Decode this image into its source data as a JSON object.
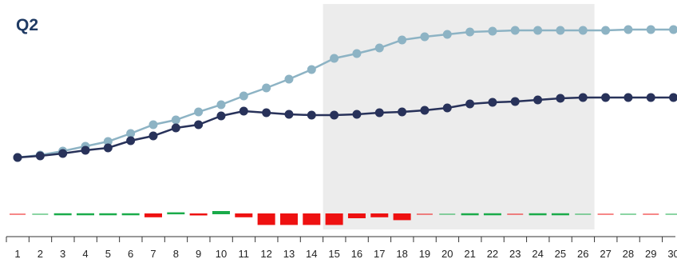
{
  "chart_data": {
    "type": "line",
    "title": "Q2",
    "x": [
      1,
      2,
      3,
      4,
      5,
      6,
      7,
      8,
      9,
      10,
      11,
      12,
      13,
      14,
      15,
      16,
      17,
      18,
      19,
      20,
      21,
      22,
      23,
      24,
      25,
      26,
      27,
      28,
      29,
      30
    ],
    "highlight_range": [
      15,
      27
    ],
    "colors": {
      "light_series": "#8db3c4",
      "dark_series": "#28325a",
      "highlight": "#ececec",
      "positive": "#1aab4a",
      "negative": "#ee1111",
      "axis": "#333333"
    },
    "series": [
      {
        "name": "",
        "color": "#8db3c4",
        "values": [
          197,
          194,
          189,
          183,
          177,
          167,
          156,
          150,
          140,
          131,
          120,
          110,
          99,
          87,
          73,
          67,
          60,
          50,
          46,
          43,
          40,
          39,
          38,
          38,
          38,
          38,
          38,
          37,
          37,
          37
        ]
      },
      {
        "name": "",
        "color": "#28325a",
        "values": [
          197,
          195,
          192,
          188,
          185,
          176,
          170,
          160,
          156,
          145,
          139,
          141,
          143,
          144,
          144,
          143,
          141,
          140,
          138,
          135,
          130,
          128,
          127,
          125,
          123,
          122,
          122,
          122,
          122,
          122
        ]
      }
    ],
    "differences": [
      0,
      0,
      -0.3,
      -0.3,
      -0.3,
      -0.3,
      1.2,
      -0.6,
      0.6,
      -1.0,
      1.2,
      3.6,
      3.6,
      3.6,
      3.6,
      1.5,
      1.2,
      2.1,
      0,
      0,
      -0.3,
      -0.3,
      0,
      -0.3,
      -0.3,
      0,
      0,
      0,
      0,
      0
    ],
    "ylim": [
      0,
      329
    ]
  }
}
